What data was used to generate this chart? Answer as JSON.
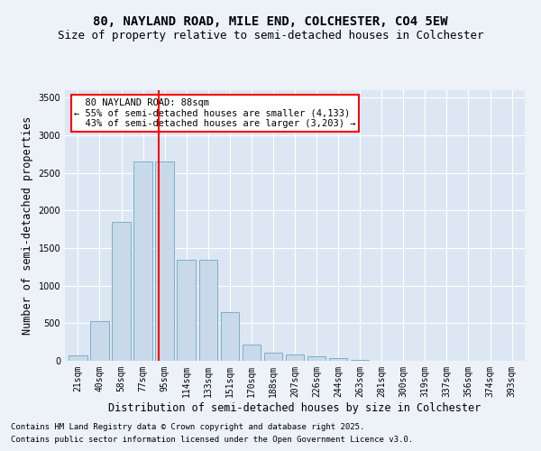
{
  "title_line1": "80, NAYLAND ROAD, MILE END, COLCHESTER, CO4 5EW",
  "title_line2": "Size of property relative to semi-detached houses in Colchester",
  "xlabel": "Distribution of semi-detached houses by size in Colchester",
  "ylabel": "Number of semi-detached properties",
  "categories": [
    "21sqm",
    "40sqm",
    "58sqm",
    "77sqm",
    "95sqm",
    "114sqm",
    "133sqm",
    "151sqm",
    "170sqm",
    "188sqm",
    "207sqm",
    "226sqm",
    "244sqm",
    "263sqm",
    "281sqm",
    "300sqm",
    "319sqm",
    "337sqm",
    "356sqm",
    "374sqm",
    "393sqm"
  ],
  "values": [
    75,
    530,
    1850,
    2650,
    2650,
    1340,
    1340,
    650,
    220,
    110,
    90,
    60,
    35,
    10,
    5,
    2,
    1,
    0,
    0,
    0,
    0
  ],
  "bar_color": "#c8daea",
  "bar_edge_color": "#7aafc8",
  "vline_color": "red",
  "vline_pos": 3.72,
  "annotation_text": "  80 NAYLAND ROAD: 88sqm  \n← 55% of semi-detached houses are smaller (4,133)\n  43% of semi-detached houses are larger (3,203) →",
  "annotation_box_color": "white",
  "annotation_box_edge": "red",
  "ylim": [
    0,
    3600
  ],
  "yticks": [
    0,
    500,
    1000,
    1500,
    2000,
    2500,
    3000,
    3500
  ],
  "footer_line1": "Contains HM Land Registry data © Crown copyright and database right 2025.",
  "footer_line2": "Contains public sector information licensed under the Open Government Licence v3.0.",
  "bg_color": "#edf2f9",
  "plot_bg_color": "#dce7f3",
  "title_fontsize": 10,
  "subtitle_fontsize": 9,
  "axis_label_fontsize": 8.5,
  "tick_fontsize": 7,
  "footer_fontsize": 6.5,
  "annot_fontsize": 7.5
}
